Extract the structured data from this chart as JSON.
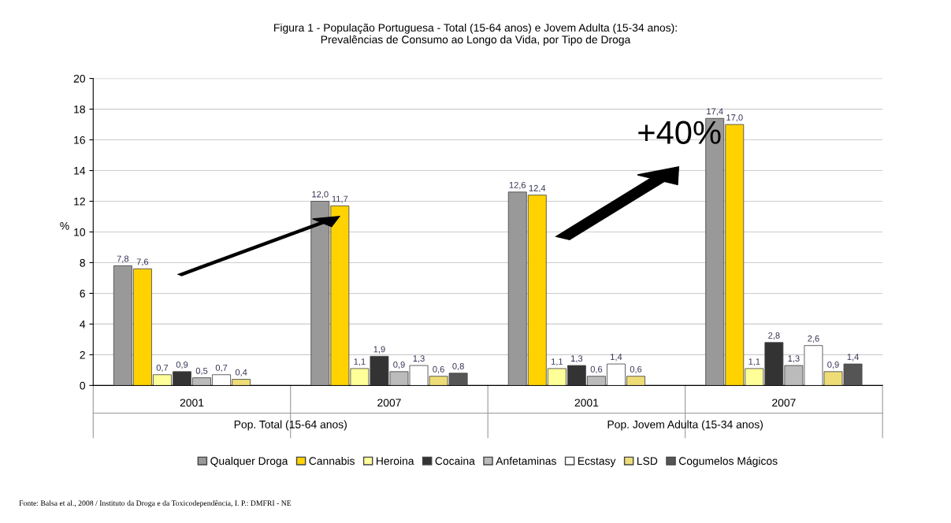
{
  "chart_data": {
    "type": "bar",
    "title": "Figura 1 - População Portuguesa - Total (15-64 anos) e Jovem Adulta (15-34 anos):\nPrevalências de Consumo ao Longo da Vida, por Tipo de Droga",
    "ylabel": "%",
    "categories": [
      "2001",
      "2007",
      "2001",
      "2007"
    ],
    "series": [
      {
        "name": "Qualquer Droga",
        "color": "#999999",
        "values": [
          7.8,
          12.0,
          12.6,
          17.4
        ],
        "value_labels": [
          "7,8",
          "12,0",
          "12,6",
          "17,4"
        ]
      },
      {
        "name": "Cannabis",
        "color": "#ffd200",
        "values": [
          7.6,
          11.7,
          12.4,
          17.0
        ],
        "value_labels": [
          "7,6",
          "11,7",
          "12,4",
          "17,0"
        ]
      },
      {
        "name": "Heroina",
        "color": "#ffff99",
        "values": [
          0.7,
          1.1,
          1.1,
          1.1
        ],
        "value_labels": [
          "0,7",
          "1,1",
          "1,1",
          "1,1"
        ]
      },
      {
        "name": "Cocaina",
        "color": "#333333",
        "values": [
          0.9,
          1.9,
          1.3,
          2.8
        ],
        "value_labels": [
          "0,9",
          "1,9",
          "1,3",
          "2,8"
        ]
      },
      {
        "name": "Anfetaminas",
        "color": "#bbbbbb",
        "values": [
          0.5,
          0.9,
          0.6,
          1.3
        ],
        "value_labels": [
          "0,5",
          "0,9",
          "0,6",
          "1,3"
        ]
      },
      {
        "name": "Ecstasy",
        "color": "#ffffff",
        "values": [
          0.7,
          1.3,
          1.4,
          2.6
        ],
        "value_labels": [
          "0,7",
          "1,3",
          "1,4",
          "2,6"
        ]
      },
      {
        "name": "LSD",
        "color": "#eedd77",
        "values": [
          0.4,
          0.6,
          0.6,
          0.9
        ],
        "value_labels": [
          "0,4",
          "0,6",
          "0,6",
          "0,9"
        ]
      },
      {
        "name": "Cogumelos Mágicos",
        "color": "#555555",
        "values": [
          null,
          0.8,
          null,
          1.4
        ],
        "value_labels": [
          null,
          "0,8",
          null,
          "1,4"
        ]
      }
    ],
    "ylim": [
      0,
      20
    ],
    "yticks": [
      0,
      2,
      4,
      6,
      8,
      10,
      12,
      14,
      16,
      18,
      20
    ],
    "grid": "y",
    "legend": "bottom",
    "annotations": [
      "Pop. Total (15-64 anos)",
      "Pop. Jovem Adulta (15-34 anos)",
      "+40%",
      "Fonte: Balsa et al., 2008 / Instituto da Droga e da Toxicodependência, I. P.: DMFRI - NE"
    ]
  }
}
